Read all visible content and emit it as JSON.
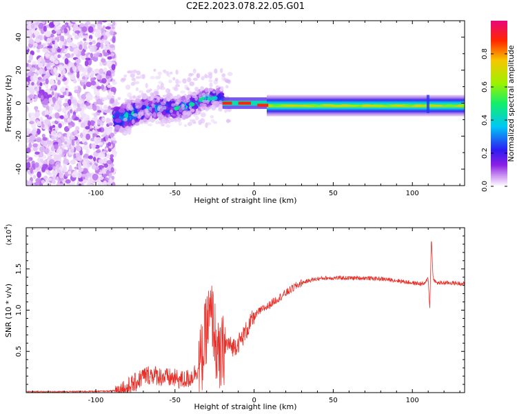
{
  "title": "C2E2.2023.078.22.05.G01",
  "colors": {
    "snr_line": "#e8302a",
    "axes": "#000000",
    "background": "#ffffff"
  },
  "colorbar": {
    "label": "Normalized spectral amplitude",
    "range": [
      0.0,
      1.0
    ],
    "ticks": [
      "0.0",
      "0.2",
      "0.4",
      "0.6",
      "0.8"
    ],
    "tick_values": [
      0.0,
      0.2,
      0.4,
      0.6,
      0.8
    ],
    "colormap": "rainbow",
    "colormap_stops": [
      "#ffffff",
      "#cf9bf2",
      "#8a1fe4",
      "#2d1cf2",
      "#00c7f5",
      "#13ee6a",
      "#9bf200",
      "#f7c700",
      "#ff2600",
      "#e8077c"
    ]
  },
  "chart_data": [
    {
      "type": "heatmap",
      "name": "spectrogram",
      "xlabel": "Height of straight line (km)",
      "ylabel": "Frequency (Hz)",
      "xlim": [
        -144,
        133
      ],
      "ylim": [
        -50,
        50
      ],
      "x_ticks": [
        -100,
        -50,
        0,
        50,
        100
      ],
      "y_ticks": [
        -40,
        -20,
        0,
        20,
        40
      ],
      "x_tick_labels": [
        "-100",
        "-50",
        "0",
        "50",
        "100"
      ],
      "y_tick_labels": [
        "-40",
        "-20",
        "0",
        "20",
        "40"
      ],
      "features": [
        {
          "region": "noise",
          "x_range": [
            -144,
            -88
          ],
          "y_range": [
            -50,
            50
          ],
          "amplitude": 0.2
        },
        {
          "region": "scattered_signal",
          "x_range": [
            -88,
            -20
          ],
          "center_freq_start": -8,
          "center_freq_end": 3,
          "amplitude": 0.45
        },
        {
          "region": "transition",
          "x_range": [
            -20,
            8
          ],
          "center_freq": 0,
          "amplitude": 0.9
        },
        {
          "region": "clean_carrier",
          "x_range": [
            8,
            133
          ],
          "center_freq": -1.5,
          "amplitude": 0.65
        }
      ],
      "grid": false
    },
    {
      "type": "line",
      "name": "snr",
      "xlabel": "Height of straight line (km)",
      "ylabel": "SNR (10 * v/v)",
      "y_scale_note": "(x10",
      "y_scale_exponent": "4",
      "xlim": [
        -144,
        133
      ],
      "ylim": [
        0,
        2.0
      ],
      "x_ticks": [
        -100,
        -50,
        0,
        50,
        100
      ],
      "y_ticks": [
        0.5,
        1.0,
        1.5
      ],
      "x_tick_labels": [
        "-100",
        "-50",
        "0",
        "50",
        "100"
      ],
      "y_tick_labels": [
        "0.5",
        "1.0",
        "1.5"
      ],
      "series": [
        {
          "x": [
            -144,
            -120,
            -100,
            -90,
            -85,
            -80,
            -75,
            -70,
            -65,
            -60,
            -55,
            -50,
            -45,
            -40,
            -35,
            -32,
            -30,
            -28,
            -26,
            -24,
            -22,
            -20,
            -17,
            -14,
            -11,
            -8,
            -5,
            -2,
            0,
            3,
            6,
            9,
            12,
            15,
            18,
            21,
            24,
            27,
            30,
            35,
            40,
            45,
            50,
            60,
            70,
            80,
            90,
            100,
            105,
            108,
            110,
            111,
            112,
            113,
            115,
            120,
            125,
            133
          ],
          "y": [
            0.01,
            0.01,
            0.015,
            0.02,
            0.03,
            0.06,
            0.12,
            0.2,
            0.22,
            0.2,
            0.18,
            0.17,
            0.15,
            0.18,
            0.3,
            0.5,
            0.8,
            0.9,
            0.9,
            0.55,
            0.35,
            0.5,
            0.6,
            0.55,
            0.58,
            0.65,
            0.75,
            0.85,
            0.92,
            0.98,
            1.02,
            1.05,
            1.1,
            1.14,
            1.18,
            1.22,
            1.26,
            1.3,
            1.33,
            1.36,
            1.38,
            1.39,
            1.39,
            1.39,
            1.39,
            1.38,
            1.36,
            1.33,
            1.32,
            1.32,
            1.4,
            1.0,
            1.9,
            1.4,
            1.33,
            1.33,
            1.33,
            1.32
          ]
        }
      ],
      "grid": false
    }
  ]
}
